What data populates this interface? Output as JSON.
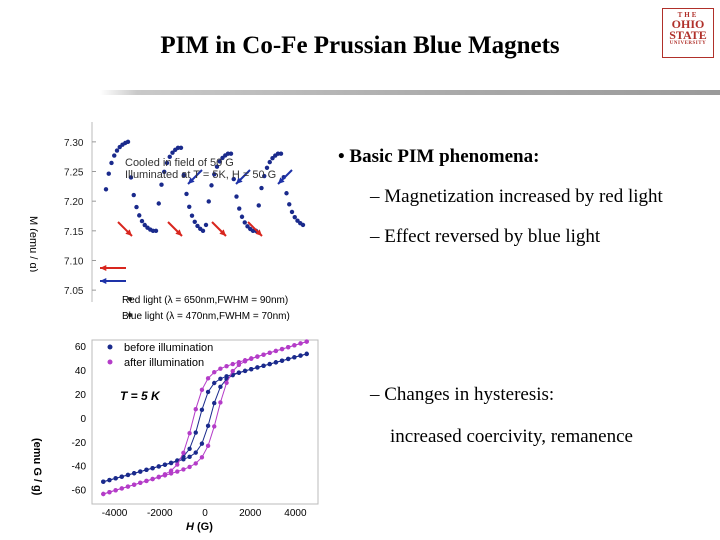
{
  "slide": {
    "title": "PIM in Co-Fe Prussian Blue Magnets",
    "logo": {
      "line1": "THE",
      "line2": "OHIO",
      "line3": "STATE",
      "line4": "UNIVERSITY"
    }
  },
  "bullets": {
    "main": "Basic PIM phenomena:",
    "sub1": "– Magnetization increased by red light",
    "sub2": "– Effect reversed by blue light",
    "sub3": "– Changes in hysteresis:",
    "sub3_cont": "increased coercivity, remanence"
  },
  "colors": {
    "red": "#d8261e",
    "blue": "#1e32a8",
    "purple": "#b43cc8",
    "navy": "#1a2a8c"
  },
  "chart_data": [
    {
      "type": "scatter",
      "ylabel": "M (emu / g)",
      "ylim": [
        7.03,
        7.32
      ],
      "yticks": [
        "7.30",
        "7.25",
        "7.20",
        "7.15",
        "7.10",
        "7.05"
      ],
      "annotation_line1": "Cooled in field of 50 G",
      "annotation_line2": "Illuminated at T = 5K, H = 50 G",
      "legend": [
        {
          "label": "Red light (λ = 650nm,FWHM = 90nm)",
          "color": "red"
        },
        {
          "label": "Blue light (λ = 470nm,FWHM = 70nm)",
          "color": "blue"
        }
      ],
      "segments": [
        {
          "start": 7.22,
          "end": 7.3,
          "shape": "rise"
        },
        {
          "start": 7.24,
          "end": 7.15,
          "shape": "decay"
        },
        {
          "start": 7.15,
          "end": 7.29,
          "shape": "rise"
        },
        {
          "start": 7.29,
          "end": 7.15,
          "shape": "decay"
        },
        {
          "start": 7.16,
          "end": 7.28,
          "shape": "rise"
        },
        {
          "start": 7.28,
          "end": 7.15,
          "shape": "decay"
        },
        {
          "start": 7.15,
          "end": 7.28,
          "shape": "rise"
        },
        {
          "start": 7.28,
          "end": 7.16,
          "shape": "decay"
        }
      ]
    },
    {
      "type": "line",
      "xlabel_var": "H",
      "xlabel_unit": "(G)",
      "ylabel": "(emu G / g)",
      "xlim": [
        -5000,
        5000
      ],
      "ylim": [
        -72,
        65
      ],
      "xticks": [
        "-4000",
        "-2000",
        "0",
        "2000",
        "4000"
      ],
      "yticks": [
        "60",
        "40",
        "20",
        "0",
        "-20",
        "-40",
        "-60"
      ],
      "temperature_label": "T = 5 K",
      "series": [
        {
          "name": "before illumination",
          "color": "navy",
          "Ms": 30,
          "slope": 0.0052,
          "Hc": 250,
          "w": 450
        },
        {
          "name": "after illumination",
          "color": "purple",
          "Ms": 38,
          "slope": 0.0057,
          "Hc": 550,
          "w": 550
        }
      ]
    }
  ]
}
